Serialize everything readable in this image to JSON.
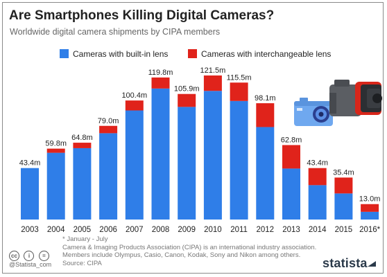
{
  "header": {
    "title": "Are Smartphones Killing Digital Cameras?",
    "subtitle": "Worldwide digital camera shipments by CIPA members"
  },
  "legend": [
    {
      "label": "Cameras with built-in lens",
      "color": "#2f7ee8"
    },
    {
      "label": "Cameras with interchangeable lens",
      "color": "#e0231b"
    }
  ],
  "chart_data": {
    "type": "bar",
    "stacked": true,
    "title": "Are Smartphones Killing Digital Cameras?",
    "subtitle": "Worldwide digital camera shipments by CIPA members",
    "categories": [
      "2003",
      "2004",
      "2005",
      "2006",
      "2007",
      "2008",
      "2009",
      "2010",
      "2011",
      "2012",
      "2013",
      "2014",
      "2015",
      "2016*"
    ],
    "series": [
      {
        "name": "Cameras with built-in lens",
        "color": "#2f7ee8",
        "values": [
          43.4,
          56.3,
          60.2,
          72.8,
          92.0,
          110.5,
          95.0,
          108.5,
          100.0,
          78.0,
          43.0,
          29.0,
          22.0,
          6.5
        ]
      },
      {
        "name": "Cameras with interchangeable lens",
        "color": "#e0231b",
        "values": [
          0,
          3.5,
          4.6,
          6.2,
          8.4,
          9.3,
          10.9,
          13.0,
          15.5,
          20.1,
          19.8,
          14.4,
          13.4,
          6.5
        ]
      }
    ],
    "totals": [
      "43.4m",
      "59.8m",
      "64.8m",
      "79.0m",
      "100.4m",
      "119.8m",
      "105.9m",
      "121.5m",
      "115.5m",
      "98.1m",
      "62.8m",
      "43.4m",
      "35.4m",
      "13.0m"
    ],
    "ylim": [
      0,
      125
    ],
    "grid": false,
    "legend_position": "top-left"
  },
  "footnote": {
    "lines": [
      "* January - July",
      "Camera & Imaging Products Association (CIPA) is an international industry association.",
      "Members include Olympus, Casio, Canon, Kodak, Sony and Nikon among others.",
      "Source: CIPA"
    ]
  },
  "credits": {
    "cc_marks": [
      "cc",
      "i",
      "="
    ],
    "attribution": "@Statista_com",
    "brand": "statista"
  },
  "illustration": {
    "icons": [
      "compact-camera-icon",
      "dslr-camera-icon"
    ]
  }
}
